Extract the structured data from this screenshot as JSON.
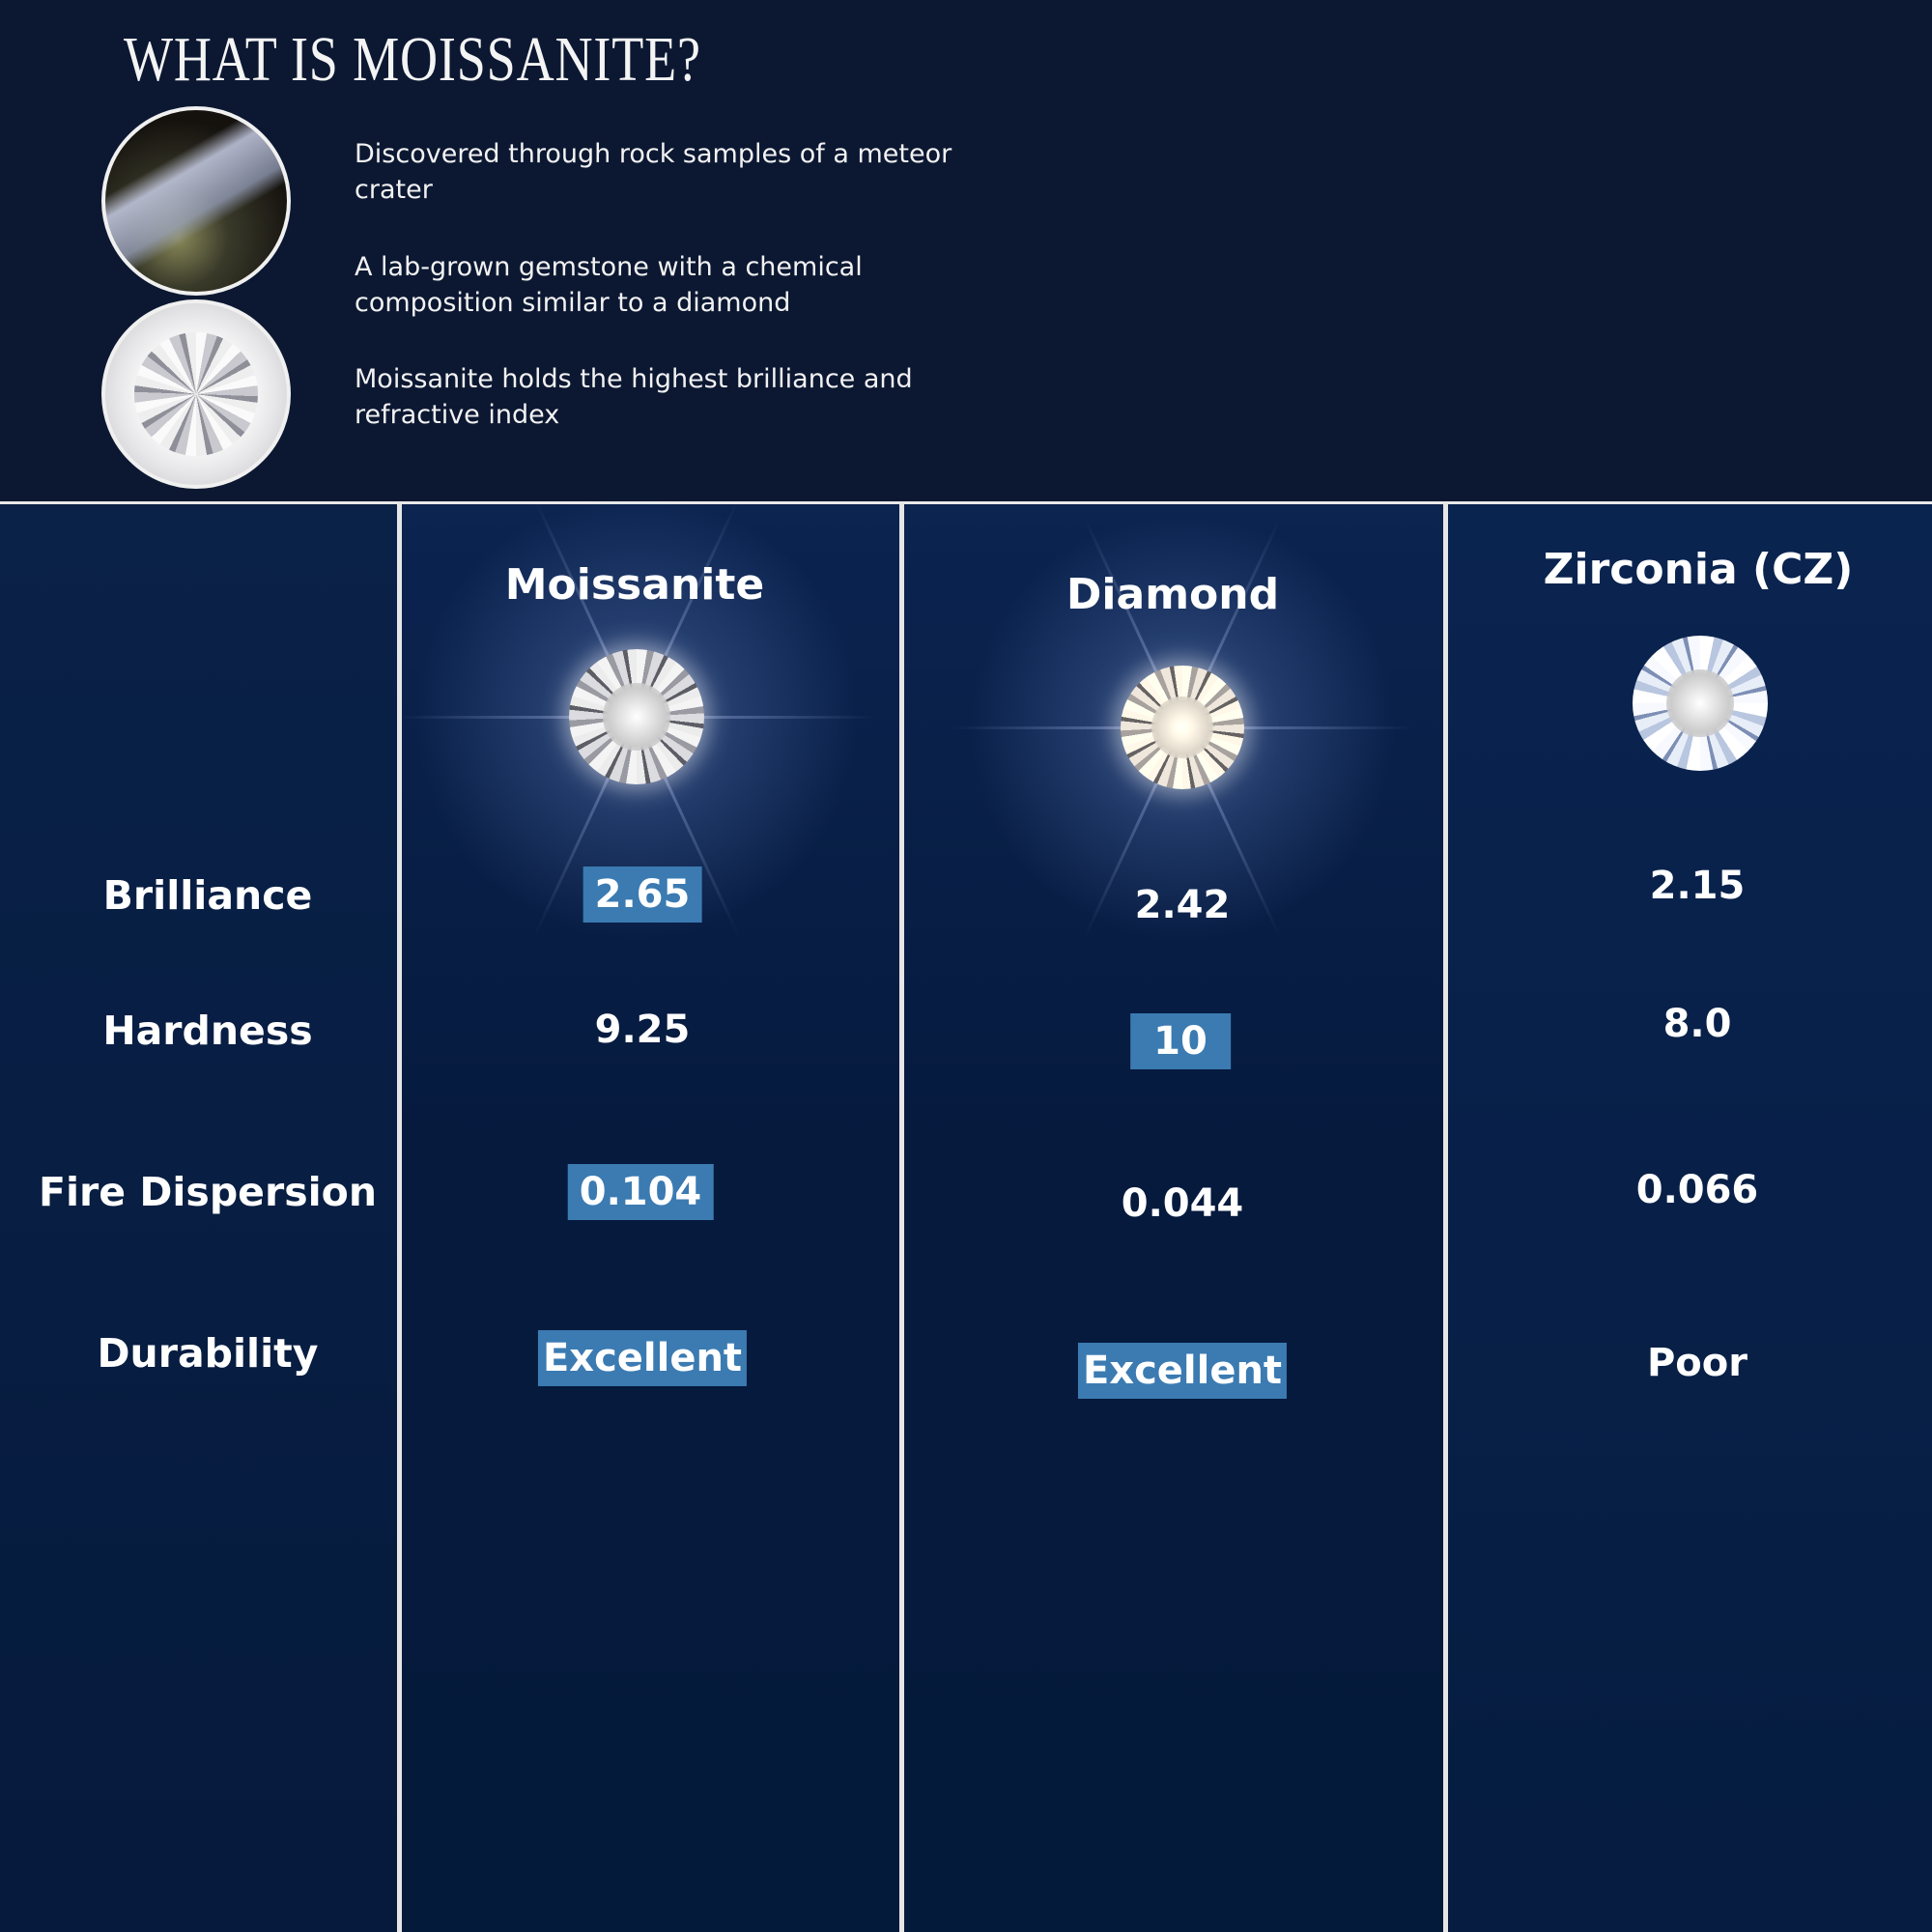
{
  "header": {
    "title": "WHAT IS MOISSANITE?",
    "bullets": [
      "Discovered through rock samples of a meteor crater",
      "A lab-grown gemstone with a chemical composition similar to a diamond",
      "Moissanite holds the highest brilliance and refractive index"
    ]
  },
  "table": {
    "columns": [
      "Moissanite",
      "Diamond",
      "Zirconia (CZ)"
    ],
    "rows": [
      {
        "label": "Brilliance",
        "values": [
          "2.65",
          "2.42",
          "2.15"
        ],
        "highlight": [
          true,
          false,
          false
        ]
      },
      {
        "label": "Hardness",
        "values": [
          "9.25",
          "10",
          "8.0"
        ],
        "highlight": [
          false,
          true,
          false
        ]
      },
      {
        "label": "Fire Dispersion",
        "values": [
          "0.104",
          "0.044",
          "0.066"
        ],
        "highlight": [
          true,
          false,
          false
        ]
      },
      {
        "label": "Durability",
        "values": [
          "Excellent",
          "Excellent",
          "Poor"
        ],
        "highlight": [
          true,
          true,
          false
        ]
      }
    ]
  },
  "colors": {
    "background": "#071a3c",
    "header_background": "#0c1832",
    "highlight": "#3b7bb2",
    "divider": "#e6e6e6"
  }
}
